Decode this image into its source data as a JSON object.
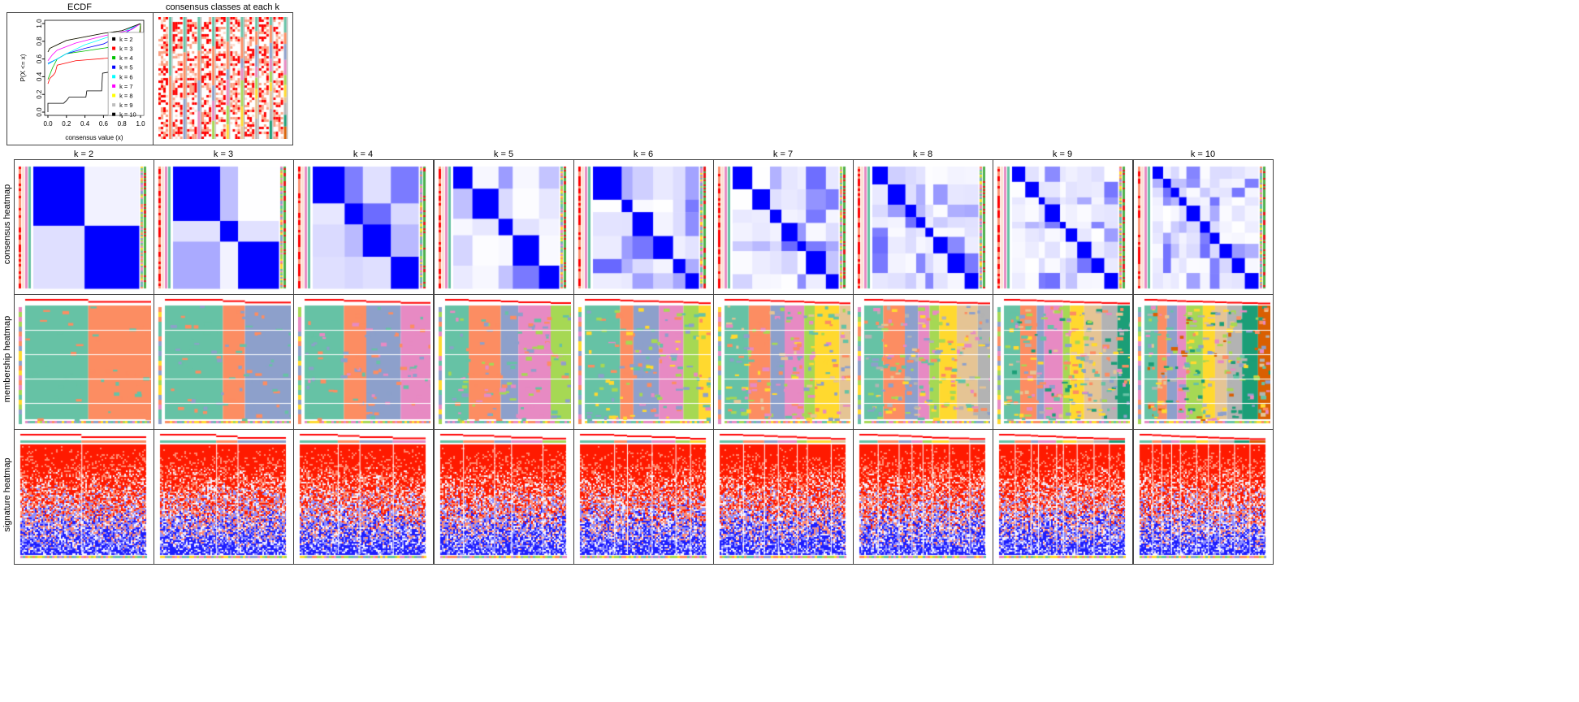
{
  "ecdf": {
    "title": "ECDF",
    "chart_data": {
      "type": "line",
      "xlabel": "consensus value (x)",
      "ylabel": "P(X <= x)",
      "xlim": [
        0,
        1
      ],
      "ylim": [
        0,
        1
      ],
      "xticks": [
        "0.0",
        "0.2",
        "0.4",
        "0.6",
        "0.8",
        "1.0"
      ],
      "yticks": [
        "0.0",
        "0.2",
        "0.4",
        "0.6",
        "0.8",
        "1.0"
      ],
      "legend_position": "bottom-right",
      "series": [
        {
          "name": "k = 2",
          "color": "#000000",
          "points": [
            [
              0,
              0
            ],
            [
              0,
              0.1
            ],
            [
              0.17,
              0.1
            ],
            [
              0.2,
              0.13
            ],
            [
              0.23,
              0.17
            ],
            [
              0.41,
              0.17
            ],
            [
              0.42,
              0.24
            ],
            [
              0.58,
              0.24
            ],
            [
              0.59,
              0.44
            ],
            [
              0.65,
              0.45
            ],
            [
              0.99,
              0.45
            ],
            [
              1,
              1
            ]
          ]
        },
        {
          "name": "k = 3",
          "color": "#FF0000",
          "points": [
            [
              0,
              0.32
            ],
            [
              0.02,
              0.38
            ],
            [
              0.06,
              0.42
            ],
            [
              0.08,
              0.45
            ],
            [
              0.1,
              0.53
            ],
            [
              0.3,
              0.58
            ],
            [
              0.65,
              0.61
            ],
            [
              0.98,
              0.63
            ],
            [
              1,
              1
            ]
          ]
        },
        {
          "name": "k = 4",
          "color": "#00C000",
          "points": [
            [
              0,
              0.37
            ],
            [
              0.05,
              0.5
            ],
            [
              0.1,
              0.6
            ],
            [
              0.2,
              0.66
            ],
            [
              0.4,
              0.69
            ],
            [
              0.65,
              0.73
            ],
            [
              0.99,
              0.9
            ],
            [
              1,
              1
            ]
          ]
        },
        {
          "name": "k = 5",
          "color": "#0000FF",
          "points": [
            [
              0,
              0.55
            ],
            [
              0.1,
              0.6
            ],
            [
              0.2,
              0.66
            ],
            [
              0.4,
              0.72
            ],
            [
              0.6,
              0.77
            ],
            [
              0.8,
              0.87
            ],
            [
              1,
              1
            ]
          ]
        },
        {
          "name": "k = 6",
          "color": "#00FFFF",
          "points": [
            [
              0,
              0.54
            ],
            [
              0.2,
              0.66
            ],
            [
              0.4,
              0.76
            ],
            [
              0.6,
              0.83
            ],
            [
              0.8,
              0.9
            ],
            [
              1,
              1
            ]
          ]
        },
        {
          "name": "k = 7",
          "color": "#FF00FF",
          "points": [
            [
              0,
              0.58
            ],
            [
              0.05,
              0.65
            ],
            [
              0.1,
              0.7
            ],
            [
              0.3,
              0.78
            ],
            [
              0.6,
              0.86
            ],
            [
              0.9,
              0.93
            ],
            [
              1,
              1
            ]
          ]
        },
        {
          "name": "k = 8",
          "color": "#FFFF00",
          "points": [
            [
              0,
              0.68
            ],
            [
              0.02,
              0.72
            ],
            [
              0.1,
              0.76
            ],
            [
              0.2,
              0.81
            ],
            [
              0.4,
              0.85
            ],
            [
              0.6,
              0.89
            ],
            [
              0.8,
              0.92
            ],
            [
              1,
              1
            ]
          ]
        },
        {
          "name": "k = 9",
          "color": "#BEBEBE",
          "points": [
            [
              0,
              0.68
            ],
            [
              0.02,
              0.72
            ],
            [
              0.1,
              0.76
            ],
            [
              0.2,
              0.81
            ],
            [
              0.4,
              0.85
            ],
            [
              0.6,
              0.89
            ],
            [
              0.8,
              0.92
            ],
            [
              1,
              1
            ]
          ]
        },
        {
          "name": "k = 10",
          "color": "#000000",
          "points": [
            [
              0,
              0.68
            ],
            [
              0.02,
              0.72
            ],
            [
              0.1,
              0.76
            ],
            [
              0.2,
              0.81
            ],
            [
              0.4,
              0.85
            ],
            [
              0.6,
              0.89
            ],
            [
              0.8,
              0.92
            ],
            [
              1,
              1
            ]
          ]
        }
      ]
    }
  },
  "classes_panel": {
    "title": "consensus classes at each k"
  },
  "row_labels": [
    "consensus heatmap",
    "membership heatmap",
    "signature heatmap"
  ],
  "columns": [
    {
      "title": "k = 2",
      "k": 2
    },
    {
      "title": "k = 3",
      "k": 3
    },
    {
      "title": "k = 4",
      "k": 4
    },
    {
      "title": "k = 5",
      "k": 5
    },
    {
      "title": "k = 6",
      "k": 6
    },
    {
      "title": "k = 7",
      "k": 7
    },
    {
      "title": "k = 8",
      "k": 8
    },
    {
      "title": "k = 9",
      "k": 9
    },
    {
      "title": "k = 10",
      "k": 10
    }
  ],
  "class_colors": [
    "#66C2A5",
    "#FC8D62",
    "#8DA0CB",
    "#E78AC3",
    "#A6D854",
    "#FFD92F",
    "#E5C494",
    "#B3B3B3",
    "#1B9E77",
    "#D95F02"
  ],
  "heat_colors": {
    "high": "#0000FF",
    "low": "#FFFFFF",
    "sig_high": "#FF0000",
    "sig_low": "#0000FF"
  }
}
